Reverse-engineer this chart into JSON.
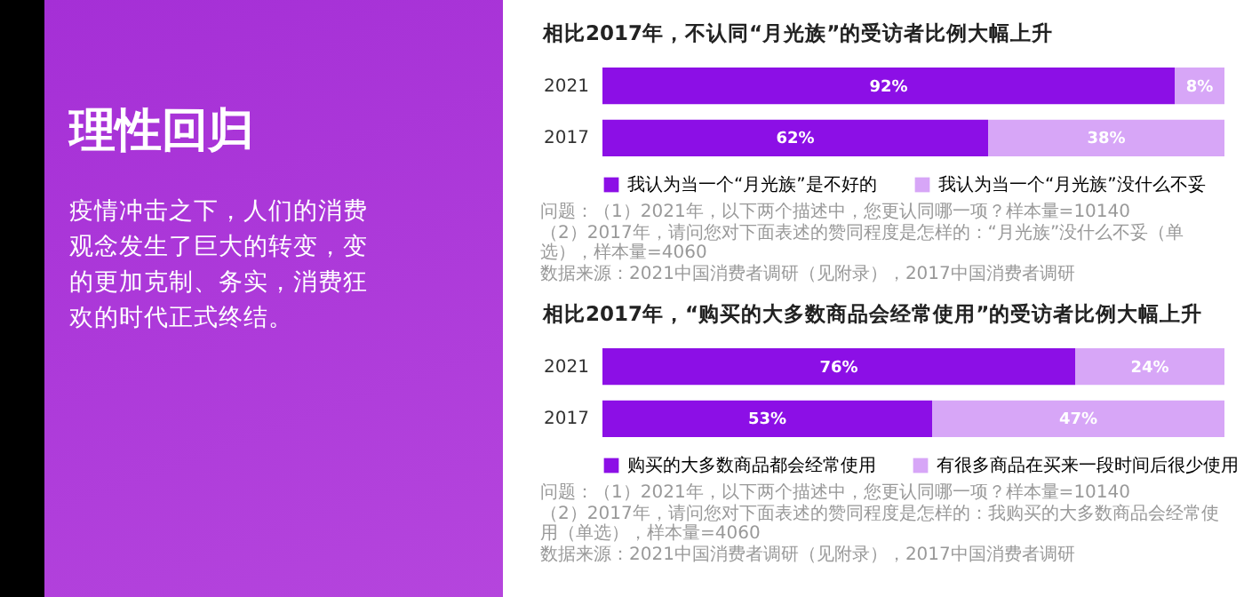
{
  "chart_data": [
    {
      "type": "other",
      "title": "理性回归",
      "annotations": [
        "疫情冲击之下，人们的消费观念发生了巨大的转变，变的更加克制、务实，消费狂欢的时代正式终结。"
      ]
    },
    {
      "type": "bar",
      "title": "相比2017年，不认同“月光族”的受访者比例大幅上升",
      "categories": [
        "2021",
        "2017"
      ],
      "orientation": "horizontal",
      "stacked": true,
      "legend": "bottom",
      "series": [
        {
          "name": "我认为当一个“月光族”是不好的",
          "color": "#8c0fe6",
          "values": [
            92,
            62
          ],
          "value_labels": [
            "92%",
            "62%"
          ]
        },
        {
          "name": "我认为当一个“月光族”没什么不妥",
          "color": "#d7a6f7",
          "values": [
            8,
            38
          ],
          "value_labels": [
            "8%",
            "38%"
          ]
        }
      ],
      "annotations": [
        "问题：（1）2021年，以下两个描述中，您更认同哪一项？样本量=10140",
        "（2）2017年，请问您对下面表述的赞同程度是怎样的：“月光族”没什么不妥（单选），样本量=4060",
        "数据来源：2021中国消费者调研（见附录），2017中国消费者调研"
      ]
    },
    {
      "type": "bar",
      "title": "相比2017年，“购买的大多数商品会经常使用”的受访者比例大幅上升",
      "categories": [
        "2021",
        "2017"
      ],
      "orientation": "horizontal",
      "stacked": true,
      "legend": "bottom",
      "series": [
        {
          "name": "购买的大多数商品都会经常使用",
          "color": "#8c0fe6",
          "values": [
            76,
            53
          ],
          "value_labels": [
            "76%",
            "53%"
          ]
        },
        {
          "name": "有很多商品在买来一段时间后很少使用",
          "color": "#d7a6f7",
          "values": [
            24,
            47
          ],
          "value_labels": [
            "24%",
            "47%"
          ]
        }
      ],
      "annotations": [
        "问题：（1）2021年，以下两个描述中，您更认同哪一项？样本量=10140",
        "（2）2017年，请问您对下面表述的赞同程度是怎样的：我购买的大多数商品会经常使用（单选），样本量=4060",
        "数据来源：2021中国消费者调研（见附录），2017中国消费者调研"
      ]
    }
  ]
}
